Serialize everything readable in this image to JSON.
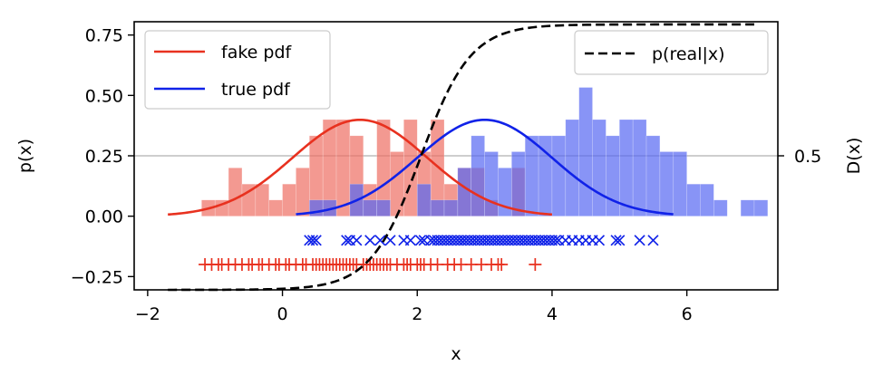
{
  "chart_data": {
    "type": "histogram+line+scatter",
    "xlabel": "x",
    "ylabel": "p(x)",
    "y2label": "D(x)",
    "xlim": [
      -2.2,
      7.35
    ],
    "ylim": [
      -0.305,
      0.805
    ],
    "xticks": [
      -2,
      0,
      2,
      4,
      6
    ],
    "xtick_labels": [
      "−2",
      "0",
      "2",
      "4",
      "6"
    ],
    "yticks": [
      -0.25,
      0.0,
      0.25,
      0.5,
      0.75
    ],
    "ytick_labels": [
      "−0.25",
      "0.00",
      "0.25",
      "0.50",
      "0.75"
    ],
    "y2tick_label": "0.5",
    "y2tick_value": 0.25,
    "reference_line": {
      "y": 0.25,
      "color": "#b0b0b0"
    },
    "legend_left": {
      "placement": "upper-left",
      "entries": [
        {
          "label": "fake pdf",
          "color": "#e8311f"
        },
        {
          "label": "true pdf",
          "color": "#1022e8"
        }
      ]
    },
    "legend_right": {
      "placement": "upper-right",
      "entries": [
        {
          "label": "p(real|x)",
          "color": "#000000",
          "style": "dashed"
        }
      ]
    },
    "fake_hist": {
      "color": "#ee6e62",
      "bin_start": -1.2,
      "bin_width": 0.2,
      "heights": [
        0.067,
        0.067,
        0.2,
        0.133,
        0.133,
        0.067,
        0.133,
        0.2,
        0.333,
        0.4,
        0.4,
        0.333,
        0.133,
        0.4,
        0.267,
        0.4,
        0.267,
        0.4,
        0.133,
        0.2,
        0.2,
        0.067,
        0.0,
        0.2
      ]
    },
    "true_hist": {
      "color": "#5566f2",
      "bin_start": 0.2,
      "bin_width": 0.2,
      "heights": [
        0.0,
        0.067,
        0.067,
        0.0,
        0.133,
        0.067,
        0.067,
        0.0,
        0.0,
        0.133,
        0.067,
        0.067,
        0.2,
        0.333,
        0.267,
        0.2,
        0.267,
        0.333,
        0.333,
        0.333,
        0.4,
        0.533,
        0.4,
        0.333,
        0.4,
        0.4,
        0.333,
        0.267,
        0.267,
        0.133,
        0.133,
        0.067,
        0.0,
        0.067,
        0.067,
        0.0,
        0.0,
        0.0
      ]
    },
    "fake_pdf": {
      "mu": 1.15,
      "sigma": 1.0,
      "x_range": [
        -1.7,
        4.0
      ],
      "color": "#e8311f"
    },
    "true_pdf": {
      "mu": 3.0,
      "sigma": 1.0,
      "x_range": [
        0.2,
        5.8
      ],
      "color": "#1022e8"
    },
    "discriminator": {
      "label": "p(real|x)",
      "style": "dashed",
      "color": "#000000",
      "midpoint": 2.05,
      "steepness": 2.7,
      "x_range": [
        -1.7,
        7.0
      ]
    },
    "fake_samples": {
      "marker": "+",
      "y": -0.2,
      "color": "#e8311f",
      "x": [
        -1.15,
        -1.05,
        -0.95,
        -0.9,
        -0.8,
        -0.7,
        -0.6,
        -0.5,
        -0.45,
        -0.35,
        -0.3,
        -0.2,
        -0.1,
        -0.05,
        0.05,
        0.1,
        0.2,
        0.3,
        0.35,
        0.45,
        0.5,
        0.55,
        0.6,
        0.65,
        0.7,
        0.75,
        0.8,
        0.85,
        0.9,
        0.95,
        1.0,
        1.05,
        1.1,
        1.2,
        1.25,
        1.3,
        1.35,
        1.4,
        1.45,
        1.5,
        1.55,
        1.6,
        1.7,
        1.8,
        1.85,
        1.9,
        2.0,
        2.05,
        2.1,
        2.2,
        2.3,
        2.45,
        2.55,
        2.65,
        2.8,
        2.95,
        3.1,
        3.2,
        3.25,
        3.75
      ]
    },
    "true_samples": {
      "marker": "x",
      "y": -0.1,
      "color": "#1022e8",
      "x": [
        0.4,
        0.45,
        0.5,
        0.95,
        1.0,
        1.1,
        1.3,
        1.45,
        1.6,
        1.8,
        1.9,
        2.05,
        2.1,
        2.2,
        2.25,
        2.3,
        2.35,
        2.4,
        2.45,
        2.5,
        2.55,
        2.6,
        2.65,
        2.7,
        2.75,
        2.8,
        2.85,
        2.9,
        2.95,
        3.0,
        3.05,
        3.1,
        3.15,
        3.2,
        3.25,
        3.3,
        3.35,
        3.4,
        3.45,
        3.5,
        3.55,
        3.6,
        3.65,
        3.7,
        3.75,
        3.8,
        3.85,
        3.9,
        3.95,
        4.0,
        4.05,
        4.1,
        4.2,
        4.3,
        4.4,
        4.5,
        4.6,
        4.7,
        4.95,
        5.0,
        5.3,
        5.5
      ]
    }
  }
}
